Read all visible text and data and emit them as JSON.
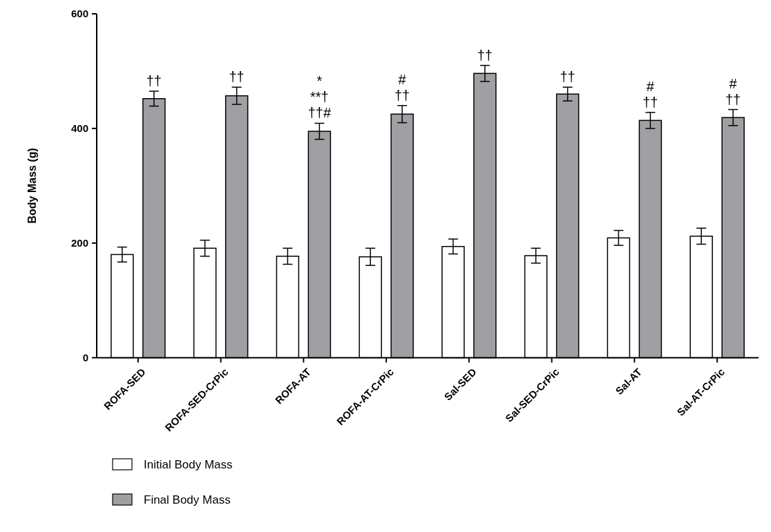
{
  "chart_data": {
    "type": "bar",
    "ylabel": "Body Mass (g)",
    "categories": [
      "ROFA-SED",
      "ROFA-SED-CrPic",
      "ROFA-AT",
      "ROFA-AT-CrPic",
      "Sal-SED",
      "Sal-SED-CrPic",
      "Sal-AT",
      "Sal-AT-CrPic"
    ],
    "series": [
      {
        "name": "Initial Body Mass",
        "color": "#ffffff",
        "values": [
          180,
          191,
          177,
          176,
          194,
          178,
          209,
          212
        ],
        "errors": [
          13,
          14,
          14,
          15,
          13,
          13,
          13,
          14
        ]
      },
      {
        "name": "Final Body Mass",
        "color": "#a0a0a4",
        "values": [
          452,
          457,
          395,
          425,
          496,
          460,
          414,
          419
        ],
        "errors": [
          13,
          15,
          14,
          15,
          14,
          12,
          14,
          14
        ],
        "value_labels": [
          "††",
          "††",
          "*\n**†\n††#",
          "#\n††",
          "††",
          "††",
          "#\n††",
          "#\n††"
        ]
      }
    ],
    "ylim": [
      0,
      600
    ],
    "yticks": [
      0,
      200,
      400,
      600
    ],
    "grid": false,
    "legend": "bottom"
  }
}
